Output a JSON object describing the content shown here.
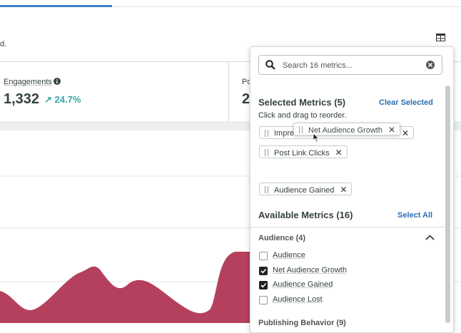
{
  "page": {
    "intro": "d.",
    "card": {
      "label": "Engagements",
      "value": "1,332",
      "change": "24.7%",
      "next_label": "Po",
      "next_value": "2"
    },
    "panel": {
      "search_placeholder": "Search 16 metrics...",
      "selected_title": "Selected Metrics (5)",
      "clear": "Clear Selected",
      "hint": "Click and drag to reorder.",
      "chips": [
        "Impre",
        "Post Link Clicks",
        "Audience Gained"
      ],
      "dragging": "Net Audience Growth",
      "available_title": "Available Metrics (16)",
      "select_all": "Select All",
      "group": "Audience (4)",
      "options": [
        {
          "label": "Audience",
          "checked": false
        },
        {
          "label": "Net Audience Growth",
          "checked": true
        },
        {
          "label": "Audience Gained",
          "checked": true
        },
        {
          "label": "Audience Lost",
          "checked": false
        }
      ],
      "next_group": "Publishing Behavior (9)"
    }
  }
}
